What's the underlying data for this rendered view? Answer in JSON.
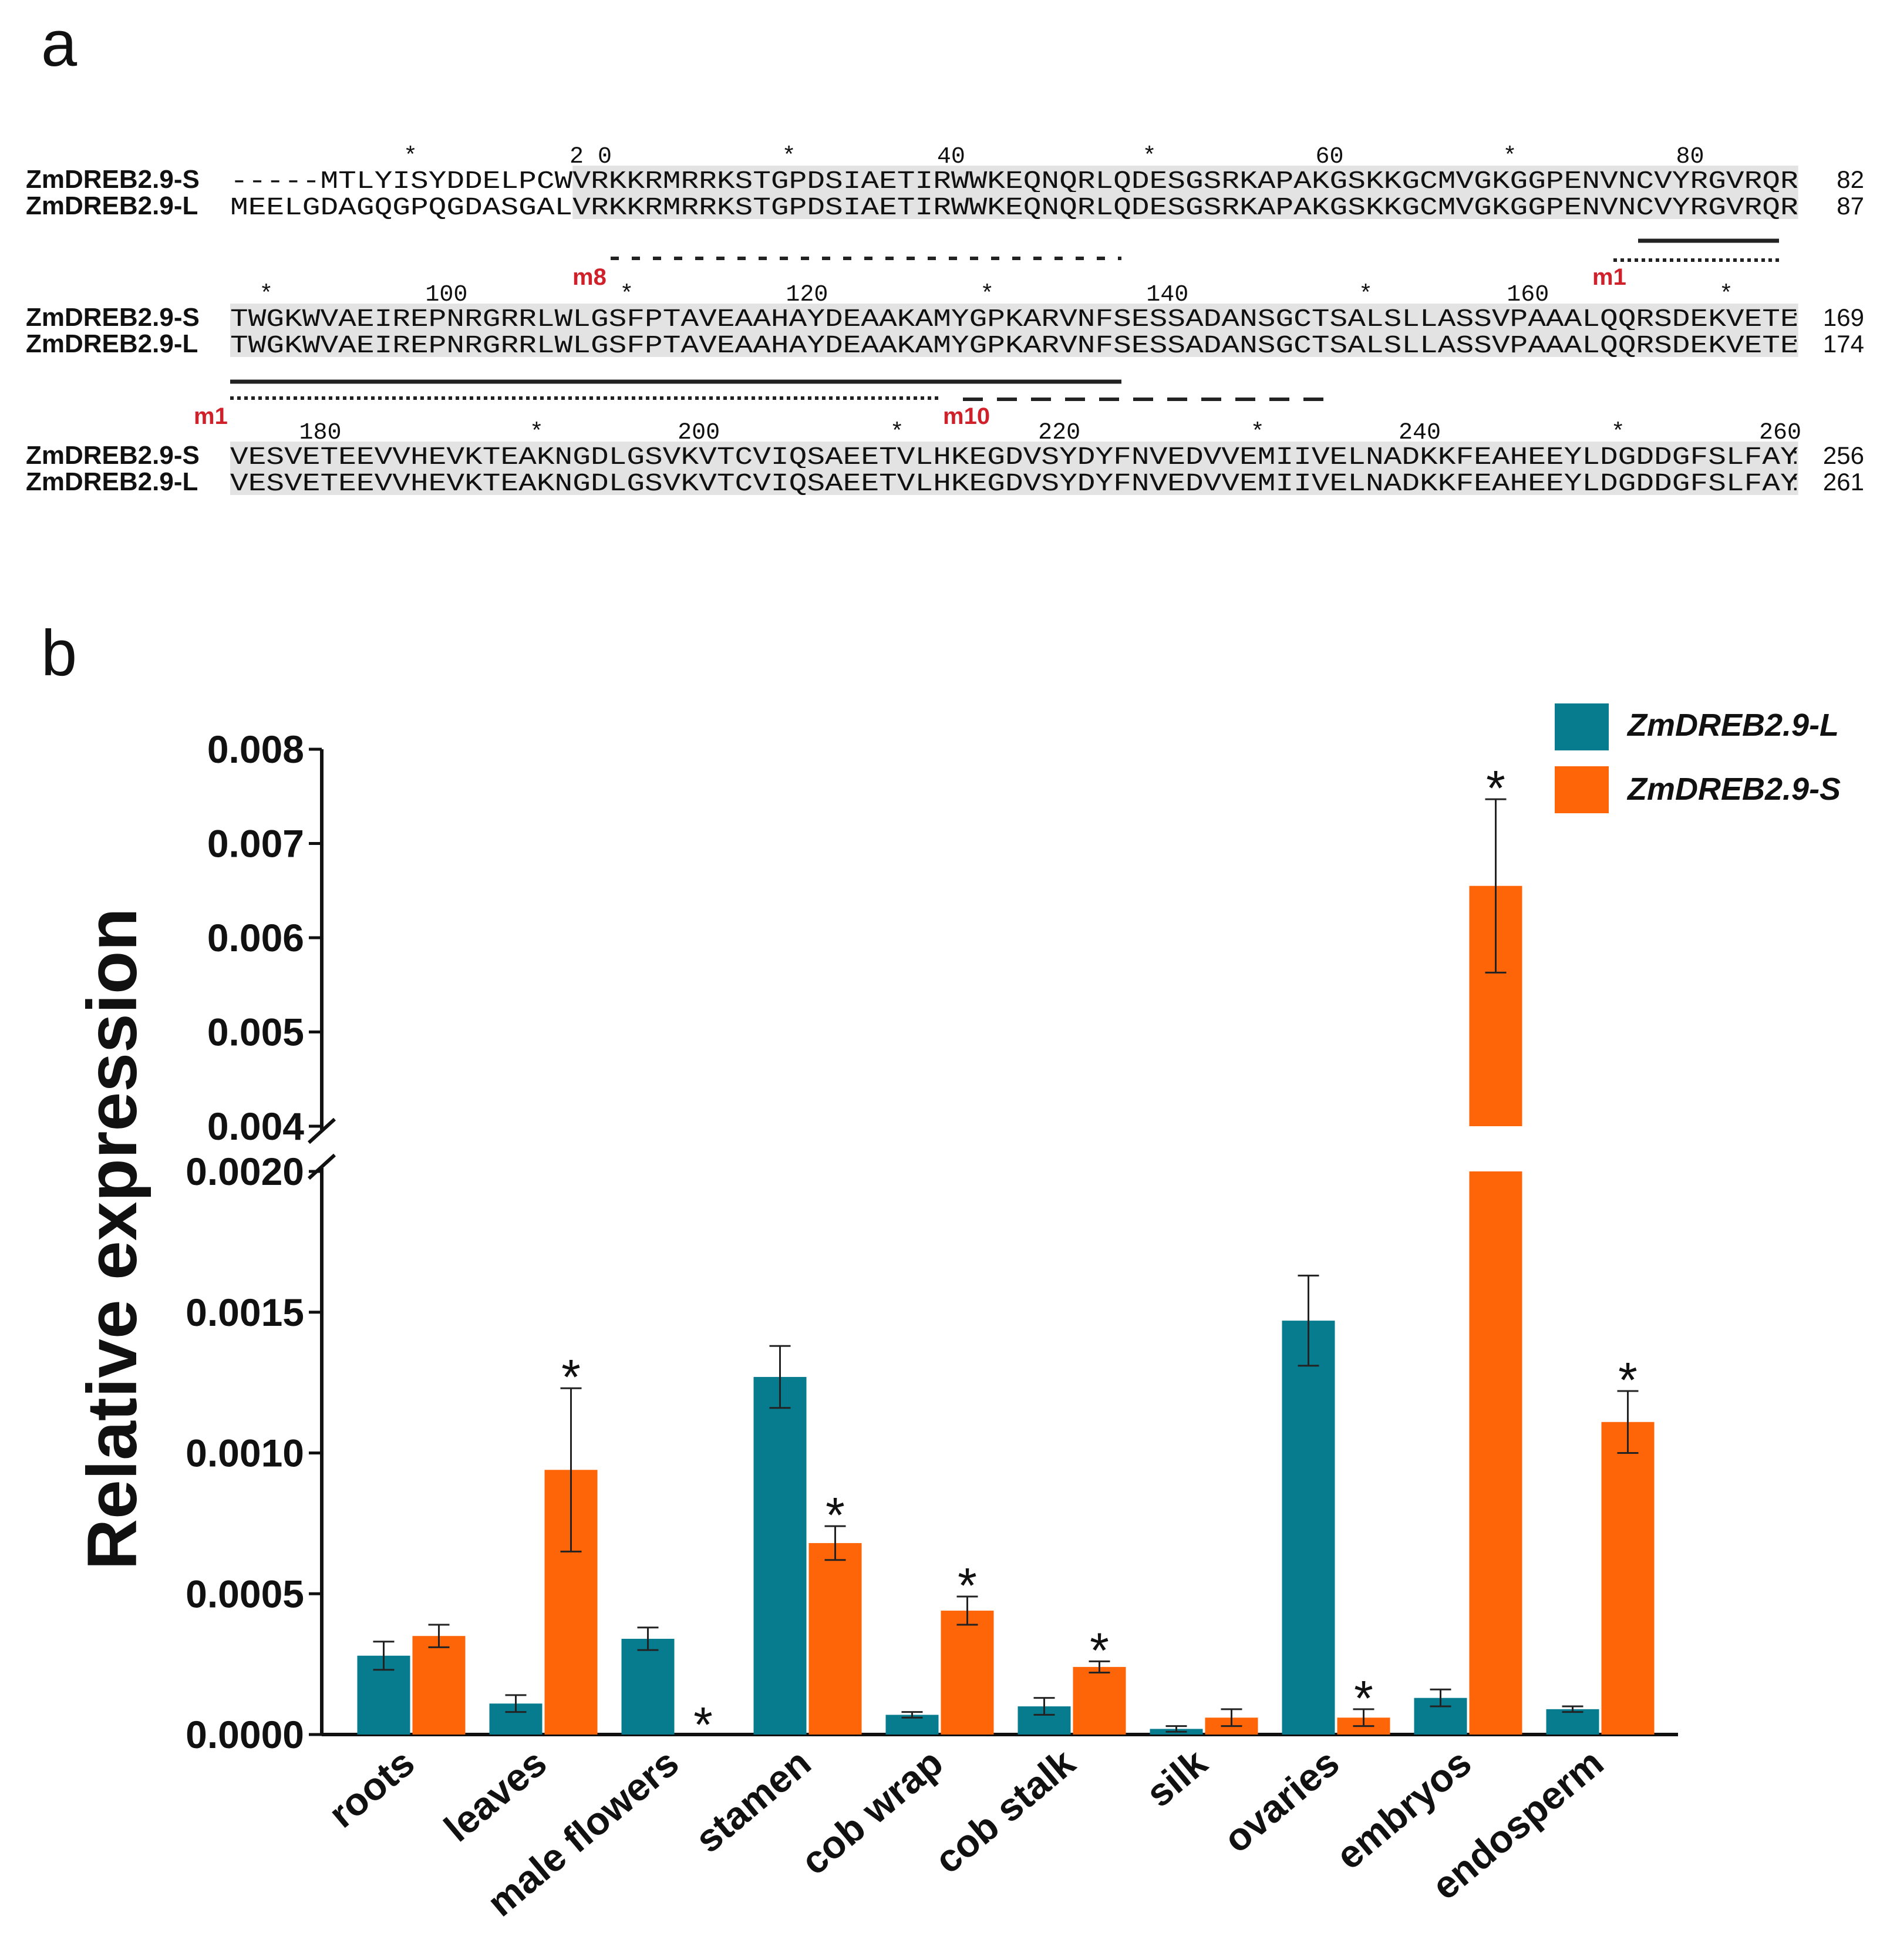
{
  "panel_a": {
    "label": "a",
    "blocks": [
      {
        "ruler": [
          {
            "text": "*",
            "pos": 10
          },
          {
            "text": "2 0",
            "pos": 20
          },
          {
            "text": "*",
            "pos": 31
          },
          {
            "text": "40",
            "pos": 40
          },
          {
            "text": "*",
            "pos": 51
          },
          {
            "text": "60",
            "pos": 61
          },
          {
            "text": "*",
            "pos": 71
          },
          {
            "text": "80",
            "pos": 81
          }
        ],
        "rows": [
          {
            "name": "ZmDREB2.9-S",
            "seq": "-----MTLYISYDDELPCWVRKKRMRRKSTGPDSIAETIRWWKEQNQRLQDESGSRKAPAKGSKKGCMVGKGGPENVNCVYRGVRQR",
            "end": "82"
          },
          {
            "name": "ZmDREB2.9-L",
            "seq": "MEELGDAGQGPQGDASGALVRKKRMRRKSTGPDSIAETIRWWKEQNQRLQDESGSRKAPAKGSKKGCMVGKGGPENVNCVYRGVRQR",
            "end": "87"
          }
        ],
        "shade_from": 19,
        "motifs": [
          {
            "label": "m8",
            "start": 0,
            "end": 0
          },
          {
            "label": "m1",
            "start": 0,
            "end": 0
          }
        ]
      },
      {
        "ruler": [
          {
            "text": "*",
            "pos": 2
          },
          {
            "text": "100",
            "pos": 12
          },
          {
            "text": "*",
            "pos": 22
          },
          {
            "text": "120",
            "pos": 32
          },
          {
            "text": "*",
            "pos": 42
          },
          {
            "text": "140",
            "pos": 52
          },
          {
            "text": "*",
            "pos": 63
          },
          {
            "text": "160",
            "pos": 72
          },
          {
            "text": "*",
            "pos": 83
          }
        ],
        "rows": [
          {
            "name": "ZmDREB2.9-S",
            "seq": "TWGKWVAEIREPNRGRRLWLGSFPTAVEAAHAYDEAAKAMYGPKARVNFSESSADANSGCTSALSLLASSVPAAALQQRSDEKVETE",
            "end": "169"
          },
          {
            "name": "ZmDREB2.9-L",
            "seq": "TWGKWVAEIREPNRGRRLWLGSFPTAVEAAHAYDEAAKAMYGPKARVNFSESSADANSGCTSALSLLASSVPAAALQQRSDEKVETE",
            "end": "174"
          }
        ],
        "shade_from": 0,
        "motifs": [
          {
            "label": "m1",
            "start": 0,
            "end": 0
          },
          {
            "label": "m10",
            "start": 0,
            "end": 0
          }
        ]
      },
      {
        "ruler": [
          {
            "text": "180",
            "pos": 5
          },
          {
            "text": "*",
            "pos": 17
          },
          {
            "text": "200",
            "pos": 26
          },
          {
            "text": "*",
            "pos": 37
          },
          {
            "text": "220",
            "pos": 46
          },
          {
            "text": "*",
            "pos": 57
          },
          {
            "text": "240",
            "pos": 66
          },
          {
            "text": "*",
            "pos": 77
          },
          {
            "text": "260",
            "pos": 86
          }
        ],
        "rows": [
          {
            "name": "ZmDREB2.9-S",
            "seq": "VESVETEEVVHEVKTEAKNGDLGSVKVTCVIQSAEETVLHKEGDVSYDYFNVEDVVEMIIVELNADKKFEAHEEYLDGDDGFSLFAY",
            "end": "256"
          },
          {
            "name": "ZmDREB2.9-L",
            "seq": "VESVETEEVVHEVKTEAKNGDLGSVKVTCVIQSAEETVLHKEGDVSYDYFNVEDVVEMIIVELNADKKFEAHEEYLDGDDGFSLFAY",
            "end": "261"
          }
        ],
        "shade_from": 0,
        "motifs": []
      }
    ],
    "end_separator": ":"
  },
  "panel_b": {
    "label": "b",
    "colors": {
      "L": "#087c8f",
      "S": "#fd6508",
      "axis": "#111111"
    },
    "chart_data": {
      "type": "bar",
      "ylabel": "Relative expression",
      "xlabel": "",
      "categories": [
        "roots",
        "leaves",
        "male flowers",
        "stamen",
        "cob wrap",
        "cob stalk",
        "silk",
        "ovaries",
        "embryos",
        "endosperm"
      ],
      "series": [
        {
          "name": "ZmDREB2.9-L",
          "values": [
            0.00028,
            0.00011,
            0.00034,
            0.00127,
            7e-05,
            0.0001,
            2e-05,
            0.00147,
            0.00013,
            9e-05
          ],
          "errors": [
            5e-05,
            3e-05,
            4e-05,
            0.00011,
            1e-05,
            3e-05,
            1e-05,
            0.00016,
            3e-05,
            1e-05
          ],
          "significant": [
            false,
            false,
            false,
            false,
            false,
            false,
            false,
            false,
            false,
            false
          ]
        },
        {
          "name": "ZmDREB2.9-S",
          "values": [
            0.00035,
            0.00094,
            0.0,
            0.00068,
            0.00044,
            0.00024,
            6e-05,
            6e-05,
            0.00655,
            0.00111
          ],
          "errors": [
            4e-05,
            0.00029,
            0.0,
            6e-05,
            5e-05,
            2e-05,
            3e-05,
            3e-05,
            0.00092,
            0.00011
          ],
          "significant": [
            false,
            true,
            true,
            true,
            true,
            true,
            false,
            true,
            true,
            true
          ]
        }
      ],
      "significance_marker": "*",
      "y_broken_axis": {
        "lower_range": [
          0,
          0.002
        ],
        "upper_range": [
          0.004,
          0.008
        ],
        "lower_ticks": [
          "0.0000",
          "0.0005",
          "0.0010",
          "0.0015",
          "0.0020"
        ],
        "lower_tick_values": [
          0,
          0.0005,
          0.001,
          0.0015,
          0.002
        ],
        "upper_ticks": [
          "0.004",
          "0.005",
          "0.006",
          "0.007",
          "0.008"
        ],
        "upper_tick_values": [
          0.004,
          0.005,
          0.006,
          0.007,
          0.008
        ]
      },
      "legend": [
        "ZmDREB2.9-L",
        "ZmDREB2.9-S"
      ],
      "legend_position": "top-right"
    }
  }
}
